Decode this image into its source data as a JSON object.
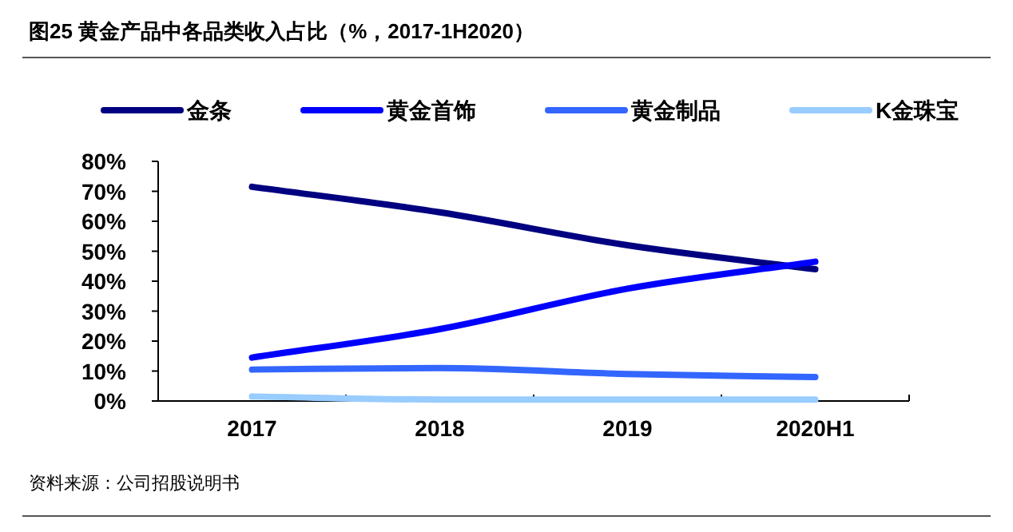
{
  "chart_data": {
    "type": "line",
    "title": "图25 黄金产品中各品类收入占比（%，2017-1H2020）",
    "categories": [
      "2017",
      "2018",
      "2019",
      "2020H1"
    ],
    "series": [
      {
        "name": "金条",
        "color": "#000080",
        "values": [
          71.5,
          63,
          52,
          44
        ]
      },
      {
        "name": "黄金首饰",
        "color": "#0000ff",
        "values": [
          14.5,
          24,
          37.5,
          46.5
        ]
      },
      {
        "name": "黄金制品",
        "color": "#3366ff",
        "values": [
          10.5,
          11,
          9,
          8
        ]
      },
      {
        "name": "K金珠宝",
        "color": "#99ccff",
        "values": [
          1.5,
          0.5,
          0.5,
          0.5
        ]
      }
    ],
    "ylim": [
      0,
      80
    ],
    "yticks": [
      {
        "value": 0,
        "label": "0%"
      },
      {
        "value": 10,
        "label": "10%"
      },
      {
        "value": 20,
        "label": "20%"
      },
      {
        "value": 30,
        "label": "30%"
      },
      {
        "value": 40,
        "label": "40%"
      },
      {
        "value": 50,
        "label": "50%"
      },
      {
        "value": 60,
        "label": "60%"
      },
      {
        "value": 70,
        "label": "70%"
      },
      {
        "value": 80,
        "label": "80%"
      }
    ],
    "legend": "top",
    "grid": false,
    "marker": "none",
    "line_style": "solid",
    "annotations": [
      "资料来源：公司招股说明书"
    ]
  }
}
